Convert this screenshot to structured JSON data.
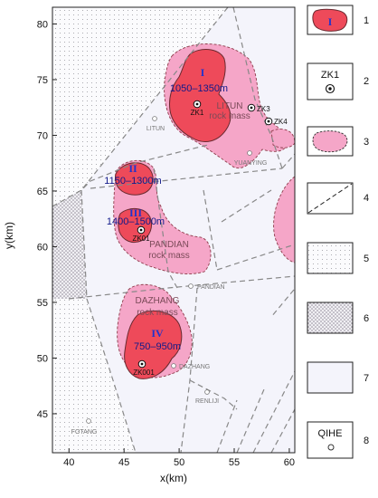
{
  "axes": {
    "xlabel": "x(km)",
    "ylabel": "y(km)",
    "xticks": [
      "40",
      "45",
      "50",
      "55",
      "60"
    ],
    "yticks": [
      "45",
      "50",
      "55",
      "60",
      "65",
      "70",
      "75",
      "80"
    ],
    "xlim": [
      38.5,
      60.5
    ],
    "ylim": [
      41.5,
      81.5
    ]
  },
  "zones": [
    {
      "roman": "I",
      "range": "1050–1350m"
    },
    {
      "roman": "II",
      "range": "1150–1300m"
    },
    {
      "roman": "III",
      "range": "1400–1500m"
    },
    {
      "roman": "IV",
      "range": "750–950m"
    }
  ],
  "rock_masses": [
    {
      "name": "LITUN",
      "sub": "rock mass"
    },
    {
      "name": "PANDIAN",
      "sub": "rock mass"
    },
    {
      "name": "DAZHANG",
      "sub": "rock mass"
    }
  ],
  "wells": [
    "ZK1",
    "ZK3",
    "ZK4",
    "ZK01",
    "ZK001"
  ],
  "towns": [
    "LITUN",
    "YUANYING",
    "PANDIAN",
    "DAZHANG",
    "RENLIJI",
    "FOTANG"
  ],
  "legend": [
    {
      "num": "1",
      "symbol": "I"
    },
    {
      "num": "2",
      "symbol": "ZK1"
    },
    {
      "num": "3"
    },
    {
      "num": "4"
    },
    {
      "num": "5"
    },
    {
      "num": "6"
    },
    {
      "num": "7"
    },
    {
      "num": "8",
      "symbol": "QIHE"
    }
  ],
  "colors": {
    "anomaly": "#ee4a5a",
    "rock_mass": "#f5a6c8",
    "background": "#f4f4fb",
    "fault": "#888888"
  }
}
